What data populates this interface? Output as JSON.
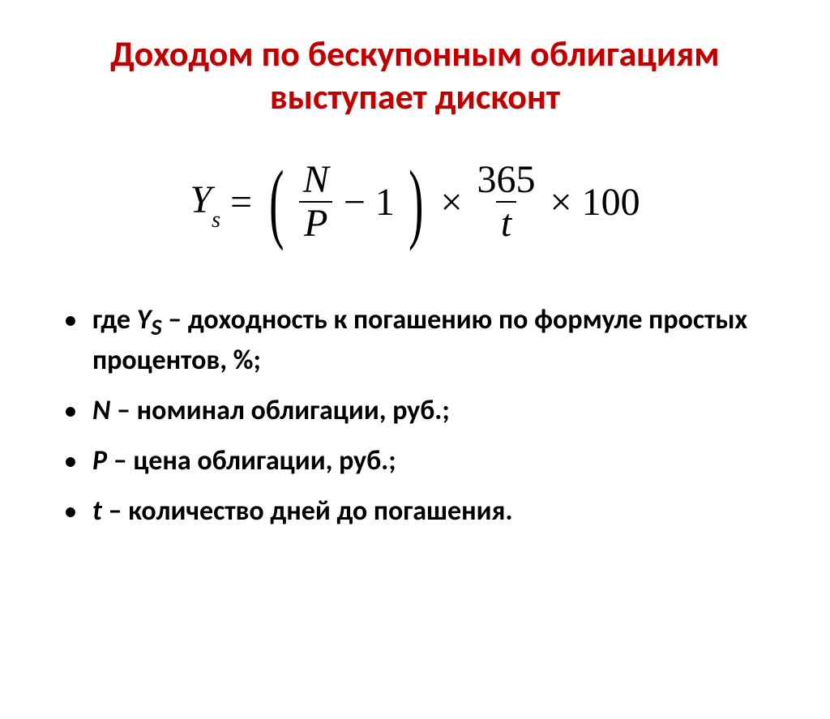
{
  "title": "Доходом по бескупонным облигациям выступает дисконт",
  "formula": {
    "result_var": "Y",
    "result_sub": "s",
    "equals": "=",
    "lparen": "(",
    "frac1_num": "N",
    "frac1_den": "P",
    "minus": "−",
    "one": "1",
    "rparen": ")",
    "times1": "×",
    "frac2_num": "365",
    "frac2_den": "t",
    "times2": "×",
    "hundred": "100"
  },
  "definitions": [
    {
      "prefix": "где ",
      "var": "Y",
      "sub": "S",
      "text": " – доходность к погашению по формуле простых процентов, %;"
    },
    {
      "prefix": "",
      "var": "N",
      "sub": "",
      "text": " – номинал облигации, руб.;"
    },
    {
      "prefix": "",
      "var": "P",
      "sub": "",
      "text": " – цена облигации, руб.;"
    },
    {
      "prefix": "",
      "var": "t",
      "sub": "",
      "text": " – количество дней до погашения."
    }
  ],
  "colors": {
    "title_color": "#c00000",
    "text_color": "#000000",
    "background": "#ffffff"
  },
  "typography": {
    "title_fontsize": 44,
    "formula_fontsize": 48,
    "definition_fontsize": 34
  }
}
